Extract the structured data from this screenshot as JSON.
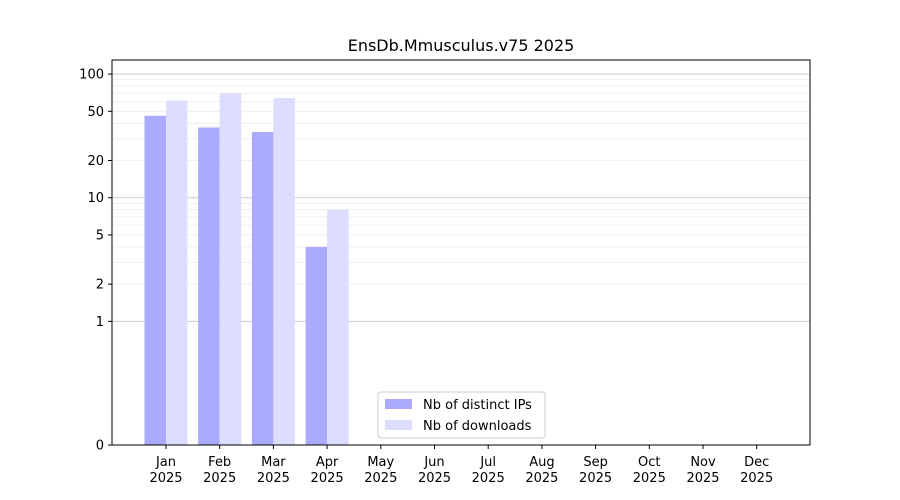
{
  "chart_data": {
    "type": "bar",
    "title": "EnsDb.Mmusculus.v75 2025",
    "xlabel": "",
    "ylabel": "",
    "yscale": "symlog",
    "ylim": [
      0,
      130
    ],
    "grid": true,
    "legend_position": "lower-center",
    "categories": [
      [
        "Jan",
        "2025"
      ],
      [
        "Feb",
        "2025"
      ],
      [
        "Mar",
        "2025"
      ],
      [
        "Apr",
        "2025"
      ],
      [
        "May",
        "2025"
      ],
      [
        "Jun",
        "2025"
      ],
      [
        "Jul",
        "2025"
      ],
      [
        "Aug",
        "2025"
      ],
      [
        "Sep",
        "2025"
      ],
      [
        "Oct",
        "2025"
      ],
      [
        "Nov",
        "2025"
      ],
      [
        "Dec",
        "2025"
      ]
    ],
    "yticks": [
      "0",
      "1",
      "2",
      "5",
      "10",
      "20",
      "50",
      "100"
    ],
    "series": [
      {
        "name": "Nb of distinct IPs",
        "color": "#aaaaff",
        "values": [
          46,
          37,
          34,
          4,
          0,
          0,
          0,
          0,
          0,
          0,
          0,
          0
        ]
      },
      {
        "name": "Nb of downloads",
        "color": "#ddddff",
        "values": [
          61,
          70,
          64,
          8,
          0,
          0,
          0,
          0,
          0,
          0,
          0,
          0
        ]
      }
    ]
  }
}
